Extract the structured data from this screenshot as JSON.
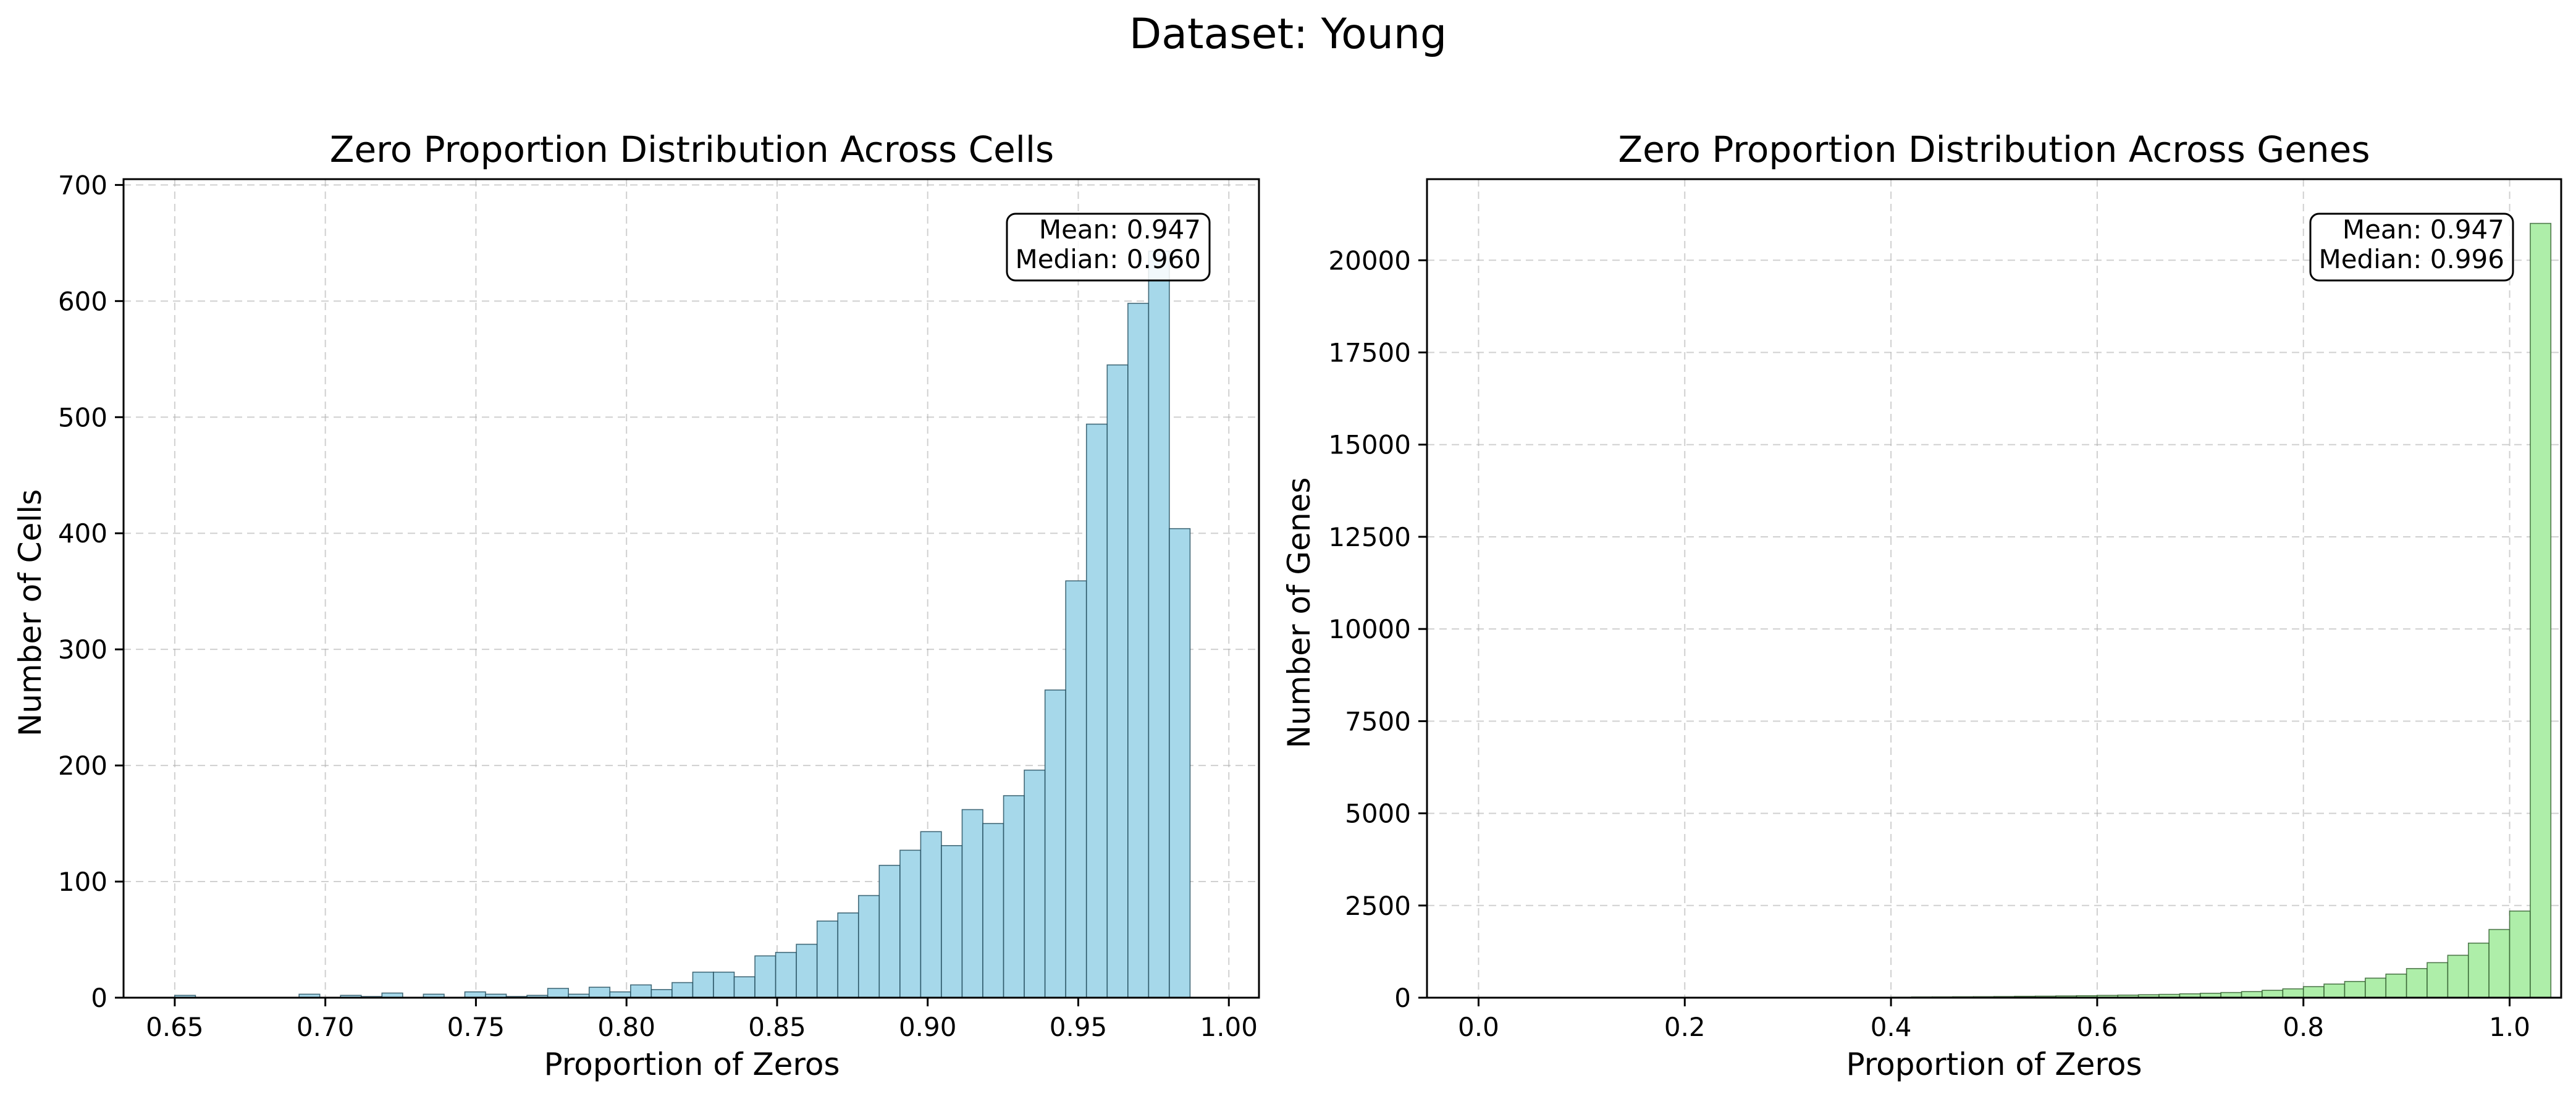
{
  "figure": {
    "suptitle": "Dataset: Young"
  },
  "chart_data": [
    {
      "type": "bar",
      "subtype": "histogram",
      "title": "Zero Proportion Distribution Across Cells",
      "xlabel": "Proportion of Zeros",
      "ylabel": "Number of Cells",
      "xlim": [
        0.633,
        1.01
      ],
      "ylim": [
        0,
        705
      ],
      "xticks": [
        0.65,
        0.7,
        0.75,
        0.8,
        0.85,
        0.9,
        0.95,
        1.0
      ],
      "xtick_labels": [
        "0.65",
        "0.70",
        "0.75",
        "0.80",
        "0.85",
        "0.90",
        "0.95",
        "1.00"
      ],
      "yticks": [
        0,
        100,
        200,
        300,
        400,
        500,
        600,
        700
      ],
      "ytick_labels": [
        "0",
        "100",
        "200",
        "300",
        "400",
        "500",
        "600",
        "700"
      ],
      "bin_start": 0.65,
      "bin_width": 0.00688,
      "counts": [
        2,
        0,
        0,
        0,
        0,
        0,
        3,
        0,
        2,
        1,
        4,
        0,
        3,
        0,
        5,
        3,
        1,
        2,
        8,
        3,
        9,
        5,
        11,
        7,
        13,
        22,
        22,
        18,
        36,
        39,
        46,
        66,
        73,
        88,
        114,
        127,
        143,
        131,
        162,
        150,
        174,
        196,
        265,
        359,
        494,
        545,
        598,
        643,
        404
      ],
      "bar_color": "#a6d8ea",
      "edge_color": "#1f4a5a",
      "grid": true,
      "annotation": {
        "line1": "Mean: 0.947",
        "line2": "Median: 0.960"
      }
    },
    {
      "type": "bar",
      "subtype": "histogram",
      "title": "Zero Proportion Distribution Across Genes",
      "xlabel": "Proportion of Zeros",
      "ylabel": "Number of Genes",
      "xlim": [
        -0.05,
        1.05
      ],
      "ylim": [
        0,
        22200
      ],
      "xticks": [
        0.0,
        0.2,
        0.4,
        0.6,
        0.8,
        1.0
      ],
      "xtick_labels": [
        "0.0",
        "0.2",
        "0.4",
        "0.6",
        "0.8",
        "1.0"
      ],
      "yticks": [
        0,
        2500,
        5000,
        7500,
        10000,
        12500,
        15000,
        17500,
        20000
      ],
      "ytick_labels": [
        "0",
        "2500",
        "5000",
        "7500",
        "10000",
        "12500",
        "15000",
        "17500",
        "20000"
      ],
      "bin_start": 0.0,
      "bin_width": 0.02,
      "counts": [
        2,
        5,
        10,
        12,
        10,
        10,
        8,
        8,
        7,
        5,
        6,
        7,
        6,
        5,
        6,
        6,
        8,
        8,
        10,
        12,
        14,
        20,
        22,
        26,
        28,
        32,
        38,
        42,
        48,
        54,
        62,
        70,
        80,
        90,
        105,
        120,
        140,
        165,
        200,
        240,
        300,
        370,
        440,
        530,
        640,
        790,
        950,
        1150,
        1480,
        1850,
        2350,
        21000
      ],
      "bar_color": "#aeeea9",
      "edge_color": "#2e5a2a",
      "grid": true,
      "annotation": {
        "line1": "Mean: 0.947",
        "line2": "Median: 0.996"
      }
    }
  ]
}
